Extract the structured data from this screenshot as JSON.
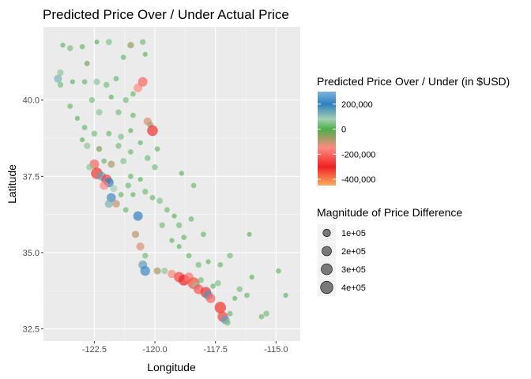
{
  "chart_data": {
    "type": "scatter",
    "title": "Predicted Price Over / Under Actual Price",
    "xlabel": "Longitude",
    "ylabel": "Latitude",
    "xlim": [
      -124.6,
      -114.0
    ],
    "ylim": [
      32.1,
      42.4
    ],
    "x_ticks": [
      -122.5,
      -120.0,
      -117.5,
      -115.0
    ],
    "x_tick_labels": [
      "-122.5",
      "-120.0",
      "-117.5",
      "-115.0"
    ],
    "y_ticks": [
      32.5,
      35.0,
      37.5,
      40.0
    ],
    "y_tick_labels": [
      "32.5",
      "35.0",
      "37.5",
      "40.0"
    ],
    "grid": true,
    "background": "#ebebeb",
    "color_legend": {
      "title": "Predicted Price Over / Under (in $USD)",
      "position": "right",
      "range": [
        -450000,
        300000
      ],
      "breaks": [
        200000,
        0,
        -200000,
        -400000
      ],
      "labels": [
        "200,000",
        "0",
        "-200,000",
        "-400,000"
      ],
      "gradient": [
        {
          "value": 300000,
          "color": "#7fb3dc"
        },
        {
          "value": 200000,
          "color": "#2f7fc1"
        },
        {
          "value": 80000,
          "color": "#a3cfb0"
        },
        {
          "value": 0,
          "color": "#4daf4a"
        },
        {
          "value": -150000,
          "color": "#ff8a80"
        },
        {
          "value": -300000,
          "color": "#ee2222"
        },
        {
          "value": -450000,
          "color": "#fdae61"
        }
      ]
    },
    "size_legend": {
      "title": "Magnitude of Price Difference",
      "position": "right",
      "breaks": [
        100000,
        200000,
        300000,
        400000
      ],
      "labels": [
        "1e+05",
        "2e+05",
        "3e+05",
        "4e+05"
      ]
    },
    "points": [
      {
        "x": -123.8,
        "y": 41.8,
        "v": 20000
      },
      {
        "x": -123.5,
        "y": 41.7,
        "v": 40000
      },
      {
        "x": -123.0,
        "y": 41.75,
        "v": 30000
      },
      {
        "x": -122.4,
        "y": 41.9,
        "v": 15000
      },
      {
        "x": -121.9,
        "y": 41.9,
        "v": 50000
      },
      {
        "x": -121.0,
        "y": 41.8,
        "v": -60000
      },
      {
        "x": -120.4,
        "y": 41.5,
        "v": 20000
      },
      {
        "x": -120.5,
        "y": 41.9,
        "v": 40000
      },
      {
        "x": -121.3,
        "y": 41.4,
        "v": 25000
      },
      {
        "x": -122.8,
        "y": 41.2,
        "v": -30000
      },
      {
        "x": -123.9,
        "y": 40.9,
        "v": 60000
      },
      {
        "x": -124.0,
        "y": 40.7,
        "v": 120000
      },
      {
        "x": -123.9,
        "y": 40.5,
        "v": 40000
      },
      {
        "x": -123.4,
        "y": 40.6,
        "v": 20000
      },
      {
        "x": -122.9,
        "y": 40.6,
        "v": 30000
      },
      {
        "x": -122.4,
        "y": 40.6,
        "v": 60000
      },
      {
        "x": -122.0,
        "y": 40.5,
        "v": 40000
      },
      {
        "x": -121.6,
        "y": 40.7,
        "v": 30000
      },
      {
        "x": -120.7,
        "y": 40.4,
        "v": -150000
      },
      {
        "x": -120.5,
        "y": 40.6,
        "v": -200000
      },
      {
        "x": -120.9,
        "y": 40.2,
        "v": 30000
      },
      {
        "x": -121.8,
        "y": 40.1,
        "v": 20000
      },
      {
        "x": -122.6,
        "y": 40.0,
        "v": 40000
      },
      {
        "x": -123.5,
        "y": 39.8,
        "v": 30000
      },
      {
        "x": -123.2,
        "y": 39.4,
        "v": 20000
      },
      {
        "x": -122.3,
        "y": 39.6,
        "v": 60000
      },
      {
        "x": -121.5,
        "y": 39.6,
        "v": 40000
      },
      {
        "x": -120.9,
        "y": 39.5,
        "v": 30000
      },
      {
        "x": -120.2,
        "y": 39.2,
        "v": -50000
      },
      {
        "x": -120.1,
        "y": 39.0,
        "v": -280000
      },
      {
        "x": -120.3,
        "y": 39.3,
        "v": -120000
      },
      {
        "x": -121.0,
        "y": 39.0,
        "v": 20000
      },
      {
        "x": -121.4,
        "y": 38.8,
        "v": 50000
      },
      {
        "x": -121.9,
        "y": 38.9,
        "v": 30000
      },
      {
        "x": -122.5,
        "y": 38.9,
        "v": 40000
      },
      {
        "x": -123.0,
        "y": 38.7,
        "v": 20000
      },
      {
        "x": -122.8,
        "y": 38.5,
        "v": 60000
      },
      {
        "x": -122.3,
        "y": 38.4,
        "v": -40000
      },
      {
        "x": -121.5,
        "y": 38.5,
        "v": 40000
      },
      {
        "x": -121.0,
        "y": 38.3,
        "v": 30000
      },
      {
        "x": -120.6,
        "y": 38.6,
        "v": 20000
      },
      {
        "x": -120.3,
        "y": 38.1,
        "v": 40000
      },
      {
        "x": -121.3,
        "y": 38.0,
        "v": 50000
      },
      {
        "x": -121.8,
        "y": 37.9,
        "v": -80000
      },
      {
        "x": -122.1,
        "y": 38.0,
        "v": 30000
      },
      {
        "x": -122.5,
        "y": 37.9,
        "v": -200000
      },
      {
        "x": -122.7,
        "y": 37.8,
        "v": 60000
      },
      {
        "x": -122.4,
        "y": 37.6,
        "v": -320000
      },
      {
        "x": -122.2,
        "y": 37.5,
        "v": 150000
      },
      {
        "x": -122.0,
        "y": 37.4,
        "v": -250000
      },
      {
        "x": -121.9,
        "y": 37.3,
        "v": 200000
      },
      {
        "x": -122.1,
        "y": 37.2,
        "v": -150000
      },
      {
        "x": -121.7,
        "y": 37.1,
        "v": 80000
      },
      {
        "x": -121.8,
        "y": 36.8,
        "v": 180000
      },
      {
        "x": -121.9,
        "y": 36.6,
        "v": 120000
      },
      {
        "x": -121.6,
        "y": 36.6,
        "v": -100000
      },
      {
        "x": -121.4,
        "y": 36.9,
        "v": 30000
      },
      {
        "x": -121.1,
        "y": 37.2,
        "v": 40000
      },
      {
        "x": -121.0,
        "y": 37.5,
        "v": 30000
      },
      {
        "x": -120.6,
        "y": 37.4,
        "v": 20000
      },
      {
        "x": -120.4,
        "y": 37.0,
        "v": 40000
      },
      {
        "x": -120.1,
        "y": 36.8,
        "v": 30000
      },
      {
        "x": -119.8,
        "y": 36.7,
        "v": 50000
      },
      {
        "x": -119.5,
        "y": 36.4,
        "v": 30000
      },
      {
        "x": -119.2,
        "y": 36.2,
        "v": 20000
      },
      {
        "x": -119.0,
        "y": 35.9,
        "v": 40000
      },
      {
        "x": -118.8,
        "y": 35.5,
        "v": 30000
      },
      {
        "x": -119.3,
        "y": 35.4,
        "v": 20000
      },
      {
        "x": -120.7,
        "y": 36.2,
        "v": 200000
      },
      {
        "x": -120.8,
        "y": 35.6,
        "v": -90000
      },
      {
        "x": -120.6,
        "y": 35.2,
        "v": -120000
      },
      {
        "x": -120.4,
        "y": 34.9,
        "v": 40000
      },
      {
        "x": -120.5,
        "y": 34.6,
        "v": 150000
      },
      {
        "x": -120.4,
        "y": 34.4,
        "v": 220000
      },
      {
        "x": -119.9,
        "y": 34.4,
        "v": -80000
      },
      {
        "x": -119.6,
        "y": 34.4,
        "v": 60000
      },
      {
        "x": -119.3,
        "y": 34.3,
        "v": -140000
      },
      {
        "x": -119.0,
        "y": 34.2,
        "v": -250000
      },
      {
        "x": -118.8,
        "y": 34.1,
        "v": -300000
      },
      {
        "x": -118.6,
        "y": 34.2,
        "v": -180000
      },
      {
        "x": -118.4,
        "y": 34.0,
        "v": -350000
      },
      {
        "x": -118.3,
        "y": 33.9,
        "v": 100000
      },
      {
        "x": -118.2,
        "y": 33.8,
        "v": -220000
      },
      {
        "x": -118.1,
        "y": 34.1,
        "v": 40000
      },
      {
        "x": -117.9,
        "y": 33.7,
        "v": -280000
      },
      {
        "x": -117.8,
        "y": 33.6,
        "v": 170000
      },
      {
        "x": -117.7,
        "y": 33.5,
        "v": -200000
      },
      {
        "x": -117.6,
        "y": 33.9,
        "v": 30000
      },
      {
        "x": -117.4,
        "y": 34.0,
        "v": 50000
      },
      {
        "x": -117.3,
        "y": 33.2,
        "v": -320000
      },
      {
        "x": -117.2,
        "y": 32.9,
        "v": -250000
      },
      {
        "x": -117.1,
        "y": 32.8,
        "v": 150000
      },
      {
        "x": -117.0,
        "y": 32.7,
        "v": 40000
      },
      {
        "x": -116.9,
        "y": 33.0,
        "v": 30000
      },
      {
        "x": -116.7,
        "y": 33.5,
        "v": 20000
      },
      {
        "x": -116.5,
        "y": 33.8,
        "v": 40000
      },
      {
        "x": -116.2,
        "y": 33.6,
        "v": 30000
      },
      {
        "x": -116.0,
        "y": 34.2,
        "v": 20000
      },
      {
        "x": -115.6,
        "y": 32.9,
        "v": 30000
      },
      {
        "x": -115.4,
        "y": 33.0,
        "v": 40000
      },
      {
        "x": -114.6,
        "y": 33.6,
        "v": 20000
      },
      {
        "x": -114.9,
        "y": 34.4,
        "v": 30000
      },
      {
        "x": -116.9,
        "y": 34.9,
        "v": 40000
      },
      {
        "x": -117.3,
        "y": 34.6,
        "v": 30000
      },
      {
        "x": -117.8,
        "y": 34.7,
        "v": 20000
      },
      {
        "x": -118.2,
        "y": 34.6,
        "v": 40000
      },
      {
        "x": -118.6,
        "y": 34.9,
        "v": 30000
      },
      {
        "x": -119.0,
        "y": 35.2,
        "v": 20000
      },
      {
        "x": -118.0,
        "y": 35.6,
        "v": 30000
      },
      {
        "x": -116.1,
        "y": 35.6,
        "v": 20000
      },
      {
        "x": -119.9,
        "y": 38.4,
        "v": 30000
      },
      {
        "x": -120.0,
        "y": 37.8,
        "v": 40000
      },
      {
        "x": -118.9,
        "y": 37.6,
        "v": 20000
      },
      {
        "x": -118.4,
        "y": 37.2,
        "v": 30000
      },
      {
        "x": -121.2,
        "y": 36.4,
        "v": 30000
      },
      {
        "x": -120.9,
        "y": 36.9,
        "v": 20000
      },
      {
        "x": -119.7,
        "y": 35.9,
        "v": 40000
      },
      {
        "x": -118.5,
        "y": 36.1,
        "v": 30000
      },
      {
        "x": -122.9,
        "y": 39.1,
        "v": 30000
      },
      {
        "x": -121.2,
        "y": 40.0,
        "v": 40000
      }
    ]
  }
}
